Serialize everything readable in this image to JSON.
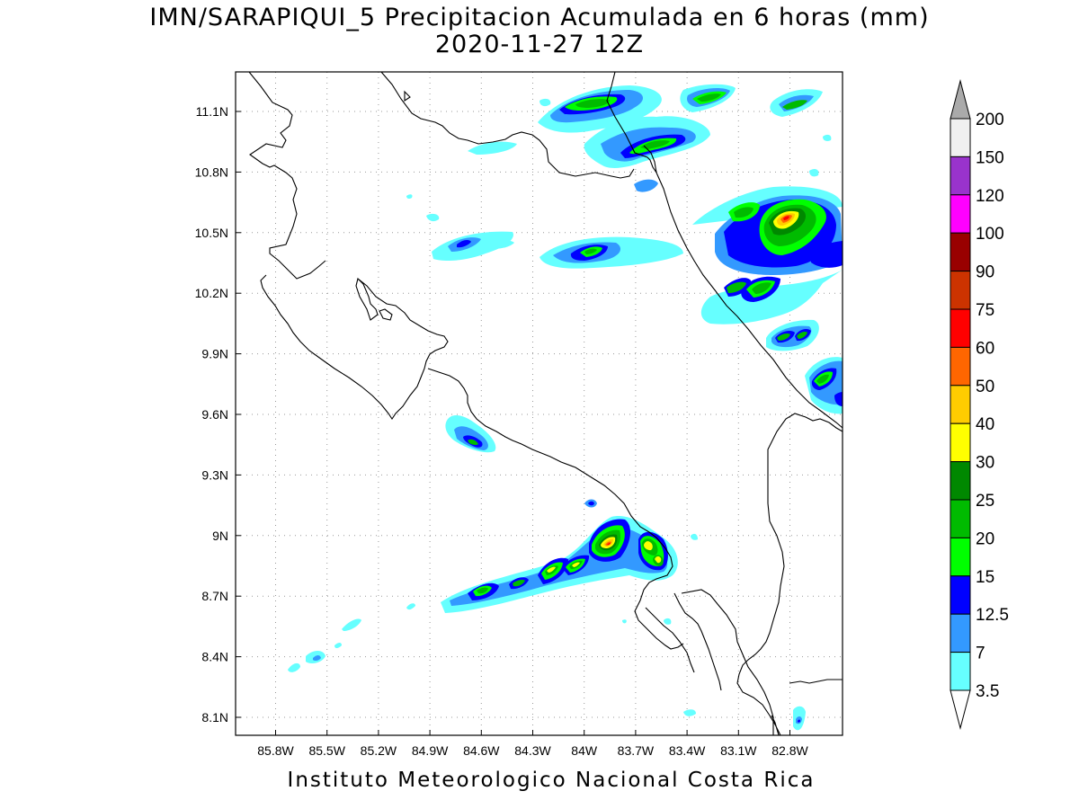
{
  "title": {
    "line1": "IMN/SARAPIQUI_5 Precipitacion Acumulada en 6 horas (mm)",
    "line2": "2020-11-27 12Z"
  },
  "footer": "Instituto Meteorologico Nacional Costa Rica",
  "axes": {
    "lon_labels": [
      "85.8W",
      "85.5W",
      "85.2W",
      "84.9W",
      "84.6W",
      "84.3W",
      "84W",
      "83.7W",
      "83.4W",
      "83.1W",
      "82.8W"
    ],
    "lat_labels": [
      "11.1N",
      "10.8N",
      "10.5N",
      "10.2N",
      "9.9N",
      "9.6N",
      "9.3N",
      "9N",
      "8.7N",
      "8.4N",
      "8.1N"
    ],
    "grid": "dotted"
  },
  "colorbar": {
    "labels": [
      "200",
      "150",
      "120",
      "100",
      "90",
      "75",
      "60",
      "50",
      "40",
      "30",
      "25",
      "20",
      "15",
      "12.5",
      "7",
      "3.5"
    ],
    "colors": [
      "#f0f0f0",
      "#9933cc",
      "#ff00ff",
      "#990000",
      "#cc3300",
      "#ff0000",
      "#ff6600",
      "#ffcc00",
      "#ffff00",
      "#008800",
      "#00bb00",
      "#00ff00",
      "#0000ff",
      "#3399ff",
      "#66ffff"
    ],
    "top_arrow_color": "#aaaaaa",
    "bottom_arrow_color": "#ffffff"
  },
  "palette": {
    "c3_5": "#66ffff",
    "c7": "#3399ff",
    "c12_5": "#0000ff",
    "c15": "#00ff00",
    "c20": "#00bb00",
    "c25": "#008800",
    "c30": "#ffff00",
    "c40": "#ffcc00",
    "c50": "#ff6600",
    "c60": "#ff0000"
  }
}
